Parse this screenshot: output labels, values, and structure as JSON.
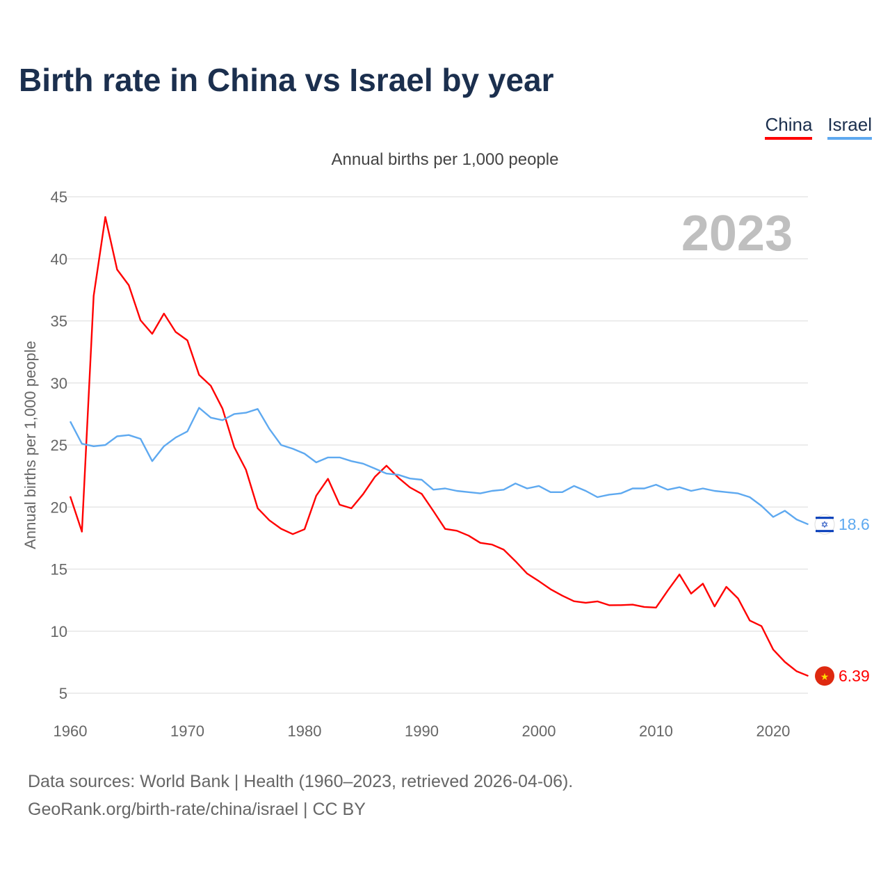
{
  "header": {
    "title": "Birth rate in China vs Israel by year"
  },
  "footer": {
    "line1": "Data sources: World Bank | Health (1960–2023, retrieved 2026-04-06).",
    "line2": "GeoRank.org/birth-rate/china/israel | CC BY"
  },
  "chart_data": {
    "type": "line",
    "title": "Birth rate in China vs Israel by year",
    "subtitle": "Annual births per 1,000 people",
    "ylabel": "Annual births per 1,000 people",
    "xlabel": "",
    "year_label": "2023",
    "ylim": [
      5,
      45
    ],
    "xlim": [
      1960,
      2023
    ],
    "yticks": [
      5,
      10,
      15,
      20,
      25,
      30,
      35,
      40,
      45
    ],
    "xticks": [
      1960,
      1970,
      1980,
      1990,
      2000,
      2010,
      2020
    ],
    "grid": true,
    "legend_placement": "top-right",
    "x_start": 1960,
    "series": [
      {
        "name": "China",
        "color": "#ff0000",
        "end_label": "6.39",
        "flag": "china-flag",
        "values": [
          20.86,
          18.02,
          37.01,
          43.37,
          39.14,
          37.88,
          35.05,
          33.96,
          35.59,
          34.11,
          33.43,
          30.65,
          29.77,
          27.93,
          24.82,
          23.01,
          19.91,
          18.93,
          18.25,
          17.82,
          18.21,
          20.91,
          22.28,
          20.19,
          19.9,
          21.04,
          22.43,
          23.33,
          22.37,
          21.58,
          21.06,
          19.68,
          18.24,
          18.09,
          17.7,
          17.12,
          16.98,
          16.57,
          15.64,
          14.64,
          14.03,
          13.38,
          12.86,
          12.41,
          12.29,
          12.4,
          12.09,
          12.1,
          12.14,
          11.95,
          11.9,
          13.27,
          14.57,
          13.03,
          13.83,
          11.99,
          13.57,
          12.64,
          10.86,
          10.41,
          8.52,
          7.52,
          6.77,
          6.39
        ]
      },
      {
        "name": "Israel",
        "color": "#5ea9f0",
        "end_label": "18.6",
        "flag": "israel-flag",
        "values": [
          26.9,
          25.1,
          24.9,
          25.0,
          25.7,
          25.8,
          25.5,
          23.7,
          24.9,
          25.6,
          26.1,
          28.0,
          27.2,
          27.0,
          27.5,
          27.6,
          27.9,
          26.3,
          25.0,
          24.7,
          24.3,
          23.6,
          24.0,
          24.0,
          23.7,
          23.5,
          23.1,
          22.7,
          22.6,
          22.3,
          22.2,
          21.4,
          21.5,
          21.3,
          21.2,
          21.1,
          21.3,
          21.4,
          21.9,
          21.5,
          21.7,
          21.2,
          21.2,
          21.7,
          21.3,
          20.8,
          21.0,
          21.1,
          21.5,
          21.5,
          21.8,
          21.4,
          21.6,
          21.3,
          21.5,
          21.3,
          21.2,
          21.1,
          20.8,
          20.1,
          19.2,
          19.7,
          19.0,
          18.6
        ]
      }
    ]
  }
}
